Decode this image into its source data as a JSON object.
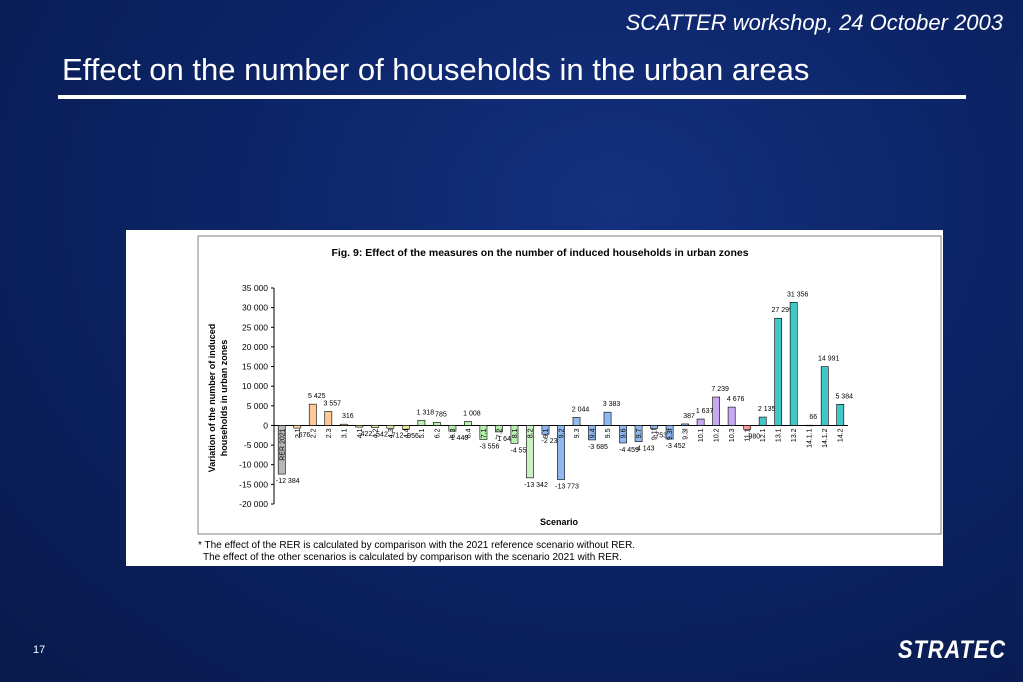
{
  "header": {
    "workshop": "SCATTER workshop, 24 October 2003",
    "title": "Effect on the number of households in the urban areas"
  },
  "page_number": "17",
  "logo_text": "STRATEC",
  "footnote": {
    "line1": "* The effect of the RER is calculated by comparison with the 2021 reference scenario without RER.",
    "line2": "The effect of the other scenarios is calculated by comparison with the scenario 2021 with RER."
  },
  "chart_data": {
    "type": "bar",
    "title": "Fig. 9: Effect of the measures on the number of induced households in urban zones",
    "xlabel": "Scenario",
    "ylabel_lines": [
      "Variation of the number of induced",
      "households in urban zones"
    ],
    "ylim": [
      -20000,
      35000
    ],
    "yticks": [
      35000,
      30000,
      25000,
      20000,
      15000,
      10000,
      5000,
      0,
      -5000,
      -10000,
      -15000,
      -20000
    ],
    "ytick_labels": [
      "35 000",
      "30 000",
      "25 000",
      "20 000",
      "15 000",
      "10 000",
      "5 000",
      "0",
      "-5 000",
      "-10 000",
      "-15 000",
      "-20 000"
    ],
    "categories": [
      "RER 2021",
      "2.1",
      "2.2",
      "2.3",
      "3.1",
      "4.1",
      "4.2",
      "4.3",
      "4.4",
      "5.1",
      "6.2",
      "6.3",
      "6.4",
      "7.1",
      "7.2",
      "8.1",
      "8.2",
      "9.1",
      "9.2",
      "9.3",
      "9.4",
      "9.5",
      "9.6",
      "9.7",
      "9.1f",
      "9.3f",
      "9.3l",
      "10.1",
      "10.2",
      "10.3",
      "11.1",
      "12.1",
      "13.1",
      "13.2",
      "14.1.1",
      "14.1.2",
      "14.2"
    ],
    "values": [
      -12384,
      -676,
      5425,
      3557,
      316,
      -422,
      -542,
      -712,
      -956,
      1318,
      785,
      -1440,
      1008,
      -3556,
      -1648,
      -4555,
      -13342,
      -2236,
      -13773,
      2044,
      -3685,
      3383,
      -4459,
      -4143,
      -753,
      -3452,
      387,
      1637,
      7239,
      4676,
      -980,
      2135,
      27299,
      31356,
      66,
      14991,
      5384
    ],
    "value_labels": [
      "-12 384",
      "-676",
      "5 425",
      "3 557",
      "316",
      "-422",
      "-542",
      "-712",
      "-956",
      "1 318",
      "785",
      "-1 440",
      "1 008",
      "-3 556",
      "-1 648",
      "-4 555",
      "-13 342",
      "-2 236",
      "-13 773",
      "2 044",
      "-3 685",
      "3 383",
      "-4 459",
      "-4 143",
      "-753",
      "-3 452",
      "387",
      "1 637",
      "7 239",
      "4 676",
      "-980",
      "2 135",
      "27 299",
      "31 356",
      "66",
      "14 991",
      "5 384"
    ],
    "colors": [
      "#b8b8b8",
      "#ffd9a8",
      "#ffc890",
      "#ffc890",
      "#ffd9a8",
      "#e8e8a0",
      "#e8e8a0",
      "#e8e8a0",
      "#e8e8a0",
      "#b8f0b0",
      "#b8f0b0",
      "#b8f0b0",
      "#b8f0b0",
      "#b8f0b0",
      "#b8f0b0",
      "#b8f0b0",
      "#c8f0c0",
      "#90b8f0",
      "#90b8f0",
      "#90b8f0",
      "#90b8f0",
      "#90b8f0",
      "#90b8f0",
      "#90b8f0",
      "#90b8f0",
      "#90b8f0",
      "#90b8f0",
      "#c8a8f0",
      "#c8a8f0",
      "#c8a8f0",
      "#ff9898",
      "#40c8c8",
      "#40c8c8",
      "#40c8c8",
      "#40c8c8",
      "#40c8c8",
      "#40c8c8"
    ],
    "grid": false,
    "legend": "none"
  }
}
